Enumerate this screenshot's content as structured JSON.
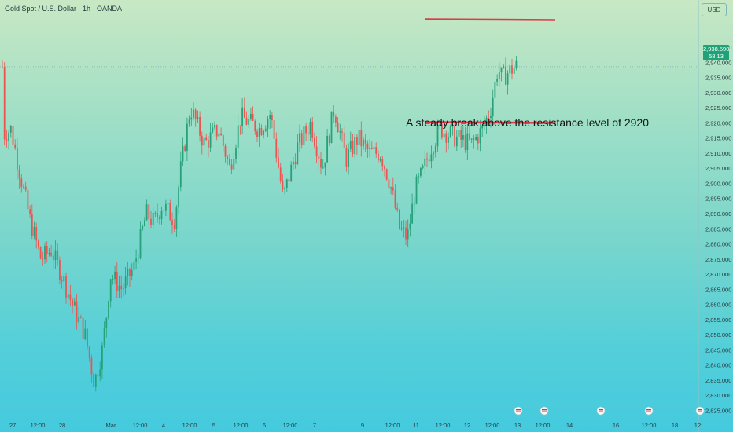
{
  "header": {
    "title": "Gold Spot / U.S. Dollar · 1h · OANDA",
    "currency": "USD"
  },
  "annotation": {
    "text": "A steady break above the resistance level of 2920"
  },
  "price_tag": {
    "price": "2,938.590",
    "countdown": "58:13"
  },
  "colors": {
    "up": "#26a17a",
    "down": "#ef5350",
    "resistance_line": "#de3a4a",
    "current_price_line": "#8aaab0"
  },
  "chart_data": {
    "type": "candlestick",
    "y_axis": {
      "ticks": [
        2825,
        2830,
        2835,
        2840,
        2845,
        2850,
        2855,
        2860,
        2865,
        2870,
        2875,
        2880,
        2885,
        2890,
        2895,
        2900,
        2905,
        2910,
        2915,
        2920,
        2925,
        2930,
        2935,
        2940,
        2945
      ],
      "tick_labels": [
        "2,825.000",
        "2,830.000",
        "2,835.000",
        "2,840.000",
        "2,845.000",
        "2,850.000",
        "2,855.000",
        "2,860.000",
        "2,865.000",
        "2,870.000",
        "2,875.000",
        "2,880.000",
        "2,885.000",
        "2,890.000",
        "2,895.000",
        "2,900.000",
        "2,905.000",
        "2,910.000",
        "2,915.000",
        "2,920.000",
        "2,925.000",
        "2,930.000",
        "2,935.000",
        "2,940.000",
        "2,945.000"
      ],
      "range": [
        2822.5,
        2957.5
      ]
    },
    "x_axis": {
      "tick_labels": [
        "27",
        "12:00",
        "28",
        "Mar",
        "12:00",
        "4",
        "12:00",
        "5",
        "12:00",
        "6",
        "12:00",
        "7",
        "9",
        "12:00",
        "11",
        "12:00",
        "12",
        "12:00",
        "13",
        "12:00",
        "14",
        "16",
        "12:00",
        "18",
        "12:"
      ]
    },
    "current_price": 2938.59,
    "resistance_levels": [
      2920,
      2954
    ],
    "trend_points": [
      {
        "time": "Feb 27 00:00",
        "price": 2916
      },
      {
        "time": "Feb 27 03:00",
        "price": 2918
      },
      {
        "time": "Feb 27 07:00",
        "price": 2905
      },
      {
        "time": "Feb 27 12:00",
        "price": 2888
      },
      {
        "time": "Feb 27 16:00",
        "price": 2875
      },
      {
        "time": "Feb 27 20:00",
        "price": 2878
      },
      {
        "time": "Feb 28 00:00",
        "price": 2870
      },
      {
        "time": "Feb 28 05:00",
        "price": 2860
      },
      {
        "time": "Feb 28 09:00",
        "price": 2850
      },
      {
        "time": "Feb 28 11:00",
        "price": 2834
      },
      {
        "time": "Feb 28 14:00",
        "price": 2845
      },
      {
        "time": "Feb 28 17:00",
        "price": 2858
      },
      {
        "time": "Mar 3 00:00",
        "price": 2870
      },
      {
        "time": "Mar 3 06:00",
        "price": 2865
      },
      {
        "time": "Mar 3 12:00",
        "price": 2872
      },
      {
        "time": "Mar 3 17:00",
        "price": 2890
      },
      {
        "time": "Mar 3 22:00",
        "price": 2887
      },
      {
        "time": "Mar 4 04:00",
        "price": 2893
      },
      {
        "time": "Mar 4 08:00",
        "price": 2888
      },
      {
        "time": "Mar 4 11:00",
        "price": 2905
      },
      {
        "time": "Mar 4 14:00",
        "price": 2925
      },
      {
        "time": "Mar 4 20:00",
        "price": 2913
      },
      {
        "time": "Mar 5 02:00",
        "price": 2918
      },
      {
        "time": "Mar 5 08:00",
        "price": 2905
      },
      {
        "time": "Mar 5 14:00",
        "price": 2922
      },
      {
        "time": "Mar 5 22:00",
        "price": 2918
      },
      {
        "time": "Mar 6 05:00",
        "price": 2923
      },
      {
        "time": "Mar 6 12:00",
        "price": 2895
      },
      {
        "time": "Mar 6 19:00",
        "price": 2912
      },
      {
        "time": "Mar 7 02:00",
        "price": 2920
      },
      {
        "time": "Mar 7 09:00",
        "price": 2905
      },
      {
        "time": "Mar 7 15:00",
        "price": 2925
      },
      {
        "time": "Mar 7 20:00",
        "price": 2908
      },
      {
        "time": "Mar 10 02:00",
        "price": 2915
      },
      {
        "time": "Mar 10 09:00",
        "price": 2910
      },
      {
        "time": "Mar 10 15:00",
        "price": 2910
      },
      {
        "time": "Mar 10 21:00",
        "price": 2900
      },
      {
        "time": "Mar 11 00:00",
        "price": 2885
      },
      {
        "time": "Mar 11 03:00",
        "price": 2882
      },
      {
        "time": "Mar 11 07:00",
        "price": 2898
      },
      {
        "time": "Mar 11 11:00",
        "price": 2904
      },
      {
        "time": "Mar 11 15:00",
        "price": 2912
      },
      {
        "time": "Mar 11 21:00",
        "price": 2918
      },
      {
        "time": "Mar 12 04:00",
        "price": 2915
      },
      {
        "time": "Mar 12 11:00",
        "price": 2913
      },
      {
        "time": "Mar 12 15:00",
        "price": 2918
      },
      {
        "time": "Mar 12 18:00",
        "price": 2925
      },
      {
        "time": "Mar 12 20:00",
        "price": 2938
      },
      {
        "time": "Mar 12 22:00",
        "price": 2935
      },
      {
        "time": "Mar 13 01:00",
        "price": 2938.59
      }
    ]
  }
}
